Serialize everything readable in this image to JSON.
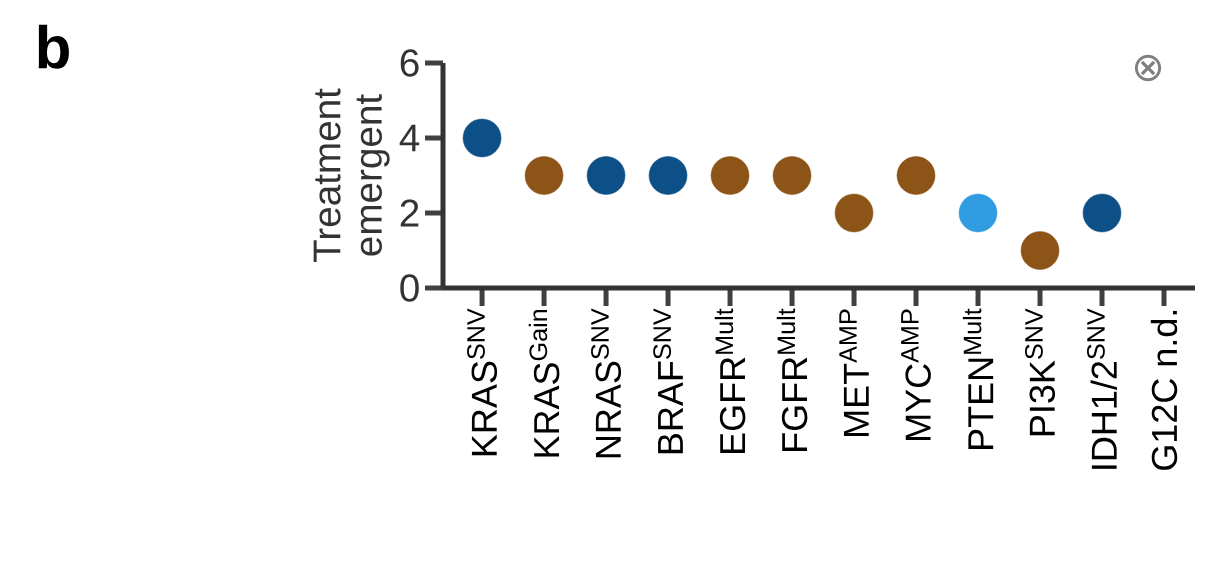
{
  "chart_data": {
    "type": "scatter",
    "ylabel": "Treatment emergent",
    "categories": [
      "KRAS$^{SNV}$",
      "KRAS$^{Gain}$",
      "NRAS$^{SNV}$",
      "BRAF$^{SNV}$",
      "EGFR$^{Mult}$",
      "FGFR$^{Mult}$",
      "MET$^{AMP}$",
      "MYC$^{AMP}$",
      "PTEN$^{Mult}$",
      "PI3K$^{SNV}$",
      "IDH1/2$^{SNV}$",
      "G12C n.d."
    ],
    "values": [
      4,
      3,
      3,
      3,
      3,
      3,
      2,
      3,
      2,
      1,
      2,
      null
    ],
    "colors": [
      "#0d4f87",
      "#8c5417",
      "#0d4f87",
      "#0d4f87",
      "#8c5417",
      "#8c5417",
      "#8c5417",
      "#8c5417",
      "#2f9be0",
      "#8c5417",
      "#0d4f87",
      "#aaaaaa"
    ],
    "ylim": [
      0,
      6
    ],
    "yticks": [
      0,
      2,
      4,
      6
    ],
    "marker": "circle",
    "annotations": [
      "b",
      "⊗"
    ]
  }
}
